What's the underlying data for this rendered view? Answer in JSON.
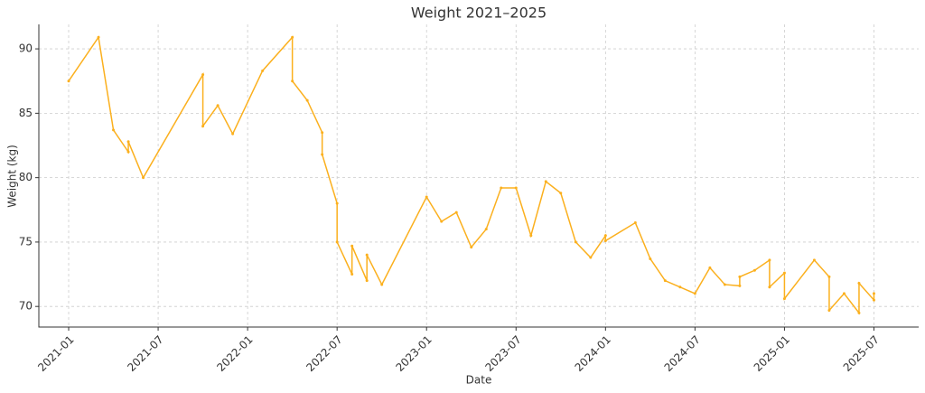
{
  "chart_data": {
    "type": "line",
    "title": "Weight 2021–2025",
    "x_label": "Date",
    "y_label": "Weight (kg)",
    "x": [
      "2021-01",
      "2021-03",
      "2021-04",
      "2021-05",
      "2021-05",
      "2021-06",
      "2021-10",
      "2021-10",
      "2021-11",
      "2021-12",
      "2022-02",
      "2022-04",
      "2022-04",
      "2022-05",
      "2022-06",
      "2022-06",
      "2022-07",
      "2022-07",
      "2022-08",
      "2022-08",
      "2022-09",
      "2022-09",
      "2022-10",
      "2023-01",
      "2023-02",
      "2023-03",
      "2023-04",
      "2023-05",
      "2023-06",
      "2023-07",
      "2023-08",
      "2023-09",
      "2023-10",
      "2023-11",
      "2023-12",
      "2024-01",
      "2024-01",
      "2024-03",
      "2024-04",
      "2024-05",
      "2024-06",
      "2024-07",
      "2024-08",
      "2024-09",
      "2024-10",
      "2024-10",
      "2024-11",
      "2024-12",
      "2024-12",
      "2025-01",
      "2025-01",
      "2025-03",
      "2025-04",
      "2025-04",
      "2025-05",
      "2025-06",
      "2025-06",
      "2025-07",
      "2025-07"
    ],
    "series": [
      {
        "name": "Weight",
        "color": "#fbb01e",
        "values": [
          87.5,
          90.9,
          83.7,
          82.0,
          82.8,
          80.0,
          88.0,
          84.0,
          85.6,
          83.4,
          88.3,
          90.9,
          87.5,
          86.0,
          83.5,
          81.8,
          78.0,
          75.0,
          72.5,
          74.7,
          72.0,
          74.0,
          71.7,
          78.5,
          76.6,
          77.3,
          74.6,
          76.0,
          79.2,
          79.2,
          75.5,
          79.7,
          78.8,
          75.0,
          73.8,
          75.5,
          75.1,
          76.5,
          73.7,
          72.0,
          71.5,
          71.0,
          73.0,
          71.7,
          71.6,
          72.3,
          72.8,
          73.6,
          71.5,
          72.6,
          70.6,
          73.6,
          72.3,
          69.7,
          71.0,
          69.5,
          71.8,
          70.5,
          71.0
        ]
      }
    ],
    "xlim": [
      "2020-11",
      "2025-10"
    ],
    "xticks": [
      "2021-01",
      "2021-07",
      "2022-01",
      "2022-07",
      "2023-01",
      "2023-07",
      "2024-01",
      "2024-07",
      "2025-01",
      "2025-07"
    ],
    "ylim": [
      68.4,
      91.9
    ],
    "yticks": [
      70,
      75,
      80,
      85,
      90
    ],
    "grid": true
  }
}
